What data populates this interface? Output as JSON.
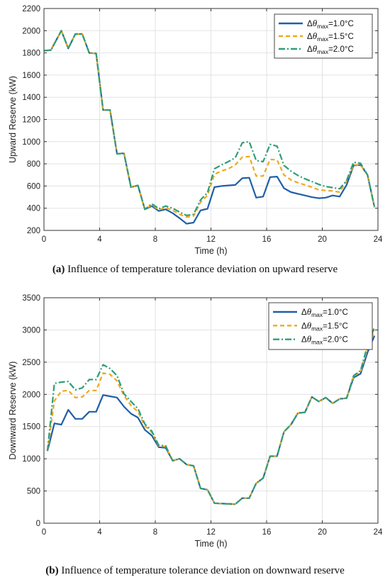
{
  "chart_data": [
    {
      "type": "line",
      "caption_letter": "(a)",
      "caption_text": " Influence of temperature tolerance deviation on upward reserve",
      "xlabel": "Time (h)",
      "ylabel": "Upward Reserve (kW)",
      "xlim": [
        0,
        24
      ],
      "ylim": [
        200,
        2200
      ],
      "xticks": [
        0,
        4,
        8,
        12,
        16,
        20,
        24
      ],
      "yticks": [
        200,
        400,
        600,
        800,
        1000,
        1200,
        1400,
        1600,
        1800,
        2000,
        2200
      ],
      "grid": true,
      "legend_position": "top-right",
      "x": [
        0,
        0.5,
        1.25,
        1.75,
        2.25,
        2.75,
        3.25,
        3.75,
        4.25,
        4.75,
        5.25,
        5.75,
        6.25,
        6.75,
        7.25,
        7.75,
        8.25,
        8.75,
        9.25,
        9.75,
        10.25,
        10.75,
        11.25,
        11.75,
        12.25,
        12.75,
        13.25,
        13.75,
        14.25,
        14.75,
        15.25,
        15.75,
        16.25,
        16.75,
        17.25,
        17.75,
        18.25,
        18.75,
        19.25,
        19.75,
        20.25,
        20.75,
        21.25,
        21.75,
        22.25,
        22.75,
        23.25,
        23.75
      ],
      "series": [
        {
          "name": "=1.0°C",
          "color": "#1f5fa8",
          "dash": "solid",
          "values": [
            1820,
            1825,
            2000,
            1840,
            1970,
            1970,
            1800,
            1795,
            1285,
            1285,
            890,
            895,
            590,
            605,
            390,
            420,
            375,
            390,
            355,
            310,
            260,
            270,
            380,
            395,
            590,
            600,
            605,
            610,
            670,
            675,
            495,
            505,
            680,
            685,
            580,
            545,
            530,
            515,
            500,
            490,
            495,
            515,
            505,
            610,
            785,
            790,
            700,
            410
          ]
        },
        {
          "name": "=1.5°C",
          "color": "#f0a81e",
          "dash": "6,4",
          "values": [
            1820,
            1825,
            2000,
            1840,
            1970,
            1970,
            1800,
            1795,
            1285,
            1285,
            890,
            895,
            590,
            605,
            390,
            430,
            385,
            405,
            380,
            345,
            320,
            330,
            455,
            515,
            705,
            735,
            755,
            790,
            860,
            865,
            690,
            690,
            840,
            835,
            700,
            655,
            630,
            610,
            590,
            565,
            560,
            555,
            545,
            645,
            790,
            790,
            700,
            410
          ]
        },
        {
          "name": "=2.0°C",
          "color": "#2f9e78",
          "dash": "9,3,2,3",
          "values": [
            1820,
            1825,
            2000,
            1840,
            1970,
            1970,
            1800,
            1795,
            1285,
            1285,
            890,
            895,
            590,
            605,
            390,
            440,
            395,
            420,
            400,
            365,
            335,
            345,
            475,
            540,
            755,
            790,
            820,
            855,
            990,
            1000,
            830,
            820,
            975,
            960,
            785,
            735,
            695,
            665,
            640,
            615,
            595,
            585,
            575,
            650,
            815,
            805,
            700,
            410
          ]
        }
      ]
    },
    {
      "type": "line",
      "caption_letter": "(b)",
      "caption_text": " Influence of temperature tolerance deviation on downward reserve",
      "xlabel": "Time (h)",
      "ylabel": "Downward Reserve (kW)",
      "xlim": [
        0,
        24
      ],
      "ylim": [
        0,
        3500
      ],
      "xticks": [
        0,
        4,
        8,
        12,
        16,
        20,
        24
      ],
      "yticks": [
        0,
        500,
        1000,
        1500,
        2000,
        2500,
        3000,
        3500
      ],
      "grid": true,
      "legend_position": "top-right",
      "x": [
        0.25,
        0.75,
        1.25,
        1.75,
        2.25,
        2.75,
        3.25,
        3.75,
        4.25,
        4.75,
        5.25,
        5.75,
        6.25,
        6.75,
        7.25,
        7.75,
        8.25,
        8.75,
        9.25,
        9.75,
        10.25,
        10.75,
        11.25,
        11.75,
        12.25,
        12.75,
        13.25,
        13.75,
        14.25,
        14.75,
        15.25,
        15.75,
        16.25,
        16.75,
        17.25,
        17.75,
        18.25,
        18.75,
        19.25,
        19.75,
        20.25,
        20.75,
        21.25,
        21.75,
        22.25,
        22.75,
        23.25,
        23.75
      ],
      "series": [
        {
          "name": "=1.0°C",
          "color": "#1f5fa8",
          "dash": "solid",
          "values": [
            1120,
            1550,
            1530,
            1760,
            1620,
            1620,
            1730,
            1730,
            1990,
            1970,
            1950,
            1810,
            1700,
            1640,
            1450,
            1360,
            1180,
            1170,
            970,
            1000,
            910,
            890,
            540,
            520,
            310,
            305,
            300,
            295,
            390,
            390,
            620,
            700,
            1040,
            1040,
            1420,
            1530,
            1710,
            1720,
            1960,
            1890,
            1950,
            1860,
            1930,
            1940,
            2260,
            2320,
            2650,
            2910
          ]
        },
        {
          "name": "=1.5°C",
          "color": "#f0a81e",
          "dash": "6,4",
          "values": [
            1120,
            1900,
            2050,
            2060,
            1950,
            1960,
            2060,
            2060,
            2330,
            2310,
            2210,
            1980,
            1830,
            1730,
            1510,
            1410,
            1200,
            1190,
            970,
            1000,
            910,
            890,
            540,
            520,
            310,
            305,
            300,
            295,
            390,
            390,
            620,
            700,
            1040,
            1040,
            1420,
            1530,
            1710,
            1720,
            1960,
            1890,
            1950,
            1860,
            1930,
            1940,
            2280,
            2350,
            2720,
            2990
          ]
        },
        {
          "name": "=2.0°C",
          "color": "#2f9e78",
          "dash": "9,3,2,3",
          "values": [
            1120,
            2170,
            2190,
            2200,
            2070,
            2100,
            2230,
            2230,
            2460,
            2400,
            2290,
            2010,
            1890,
            1780,
            1540,
            1430,
            1210,
            1200,
            970,
            1000,
            910,
            890,
            540,
            520,
            310,
            305,
            300,
            295,
            390,
            390,
            620,
            700,
            1040,
            1040,
            1420,
            1530,
            1710,
            1720,
            1960,
            1890,
            1950,
            1860,
            1930,
            1940,
            2290,
            2370,
            2760,
            3040
          ]
        }
      ]
    }
  ]
}
